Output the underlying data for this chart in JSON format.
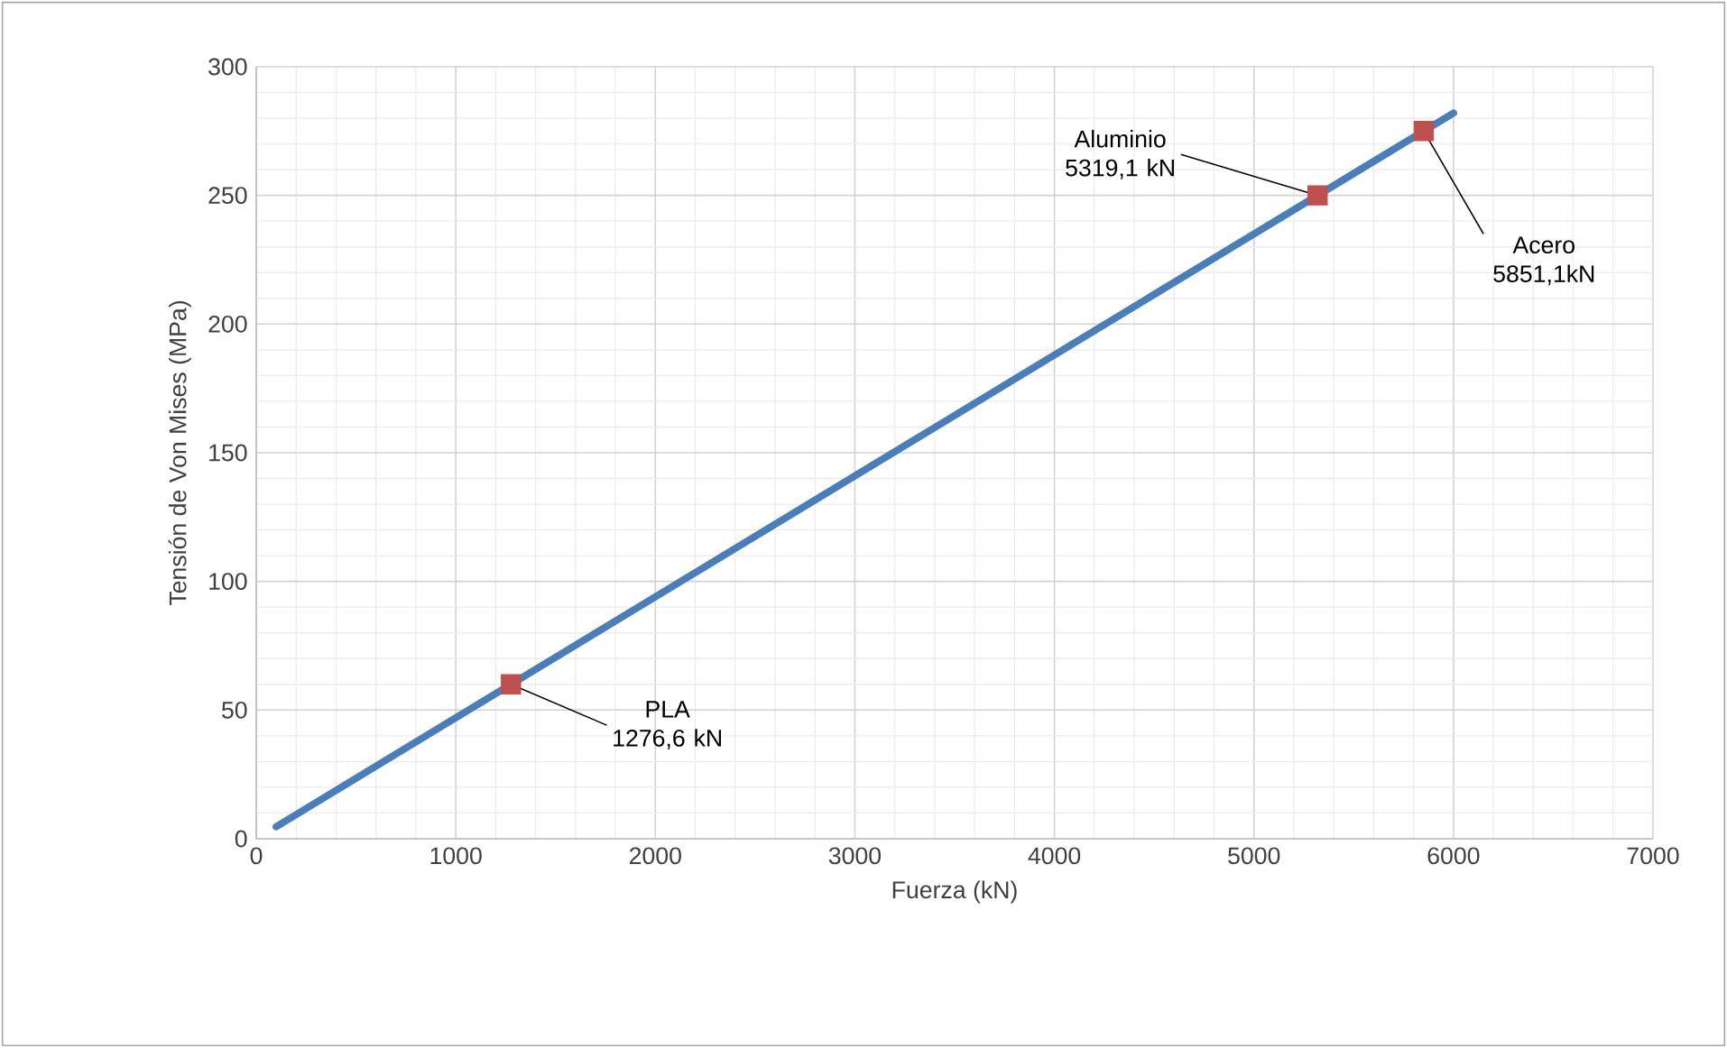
{
  "chart_data": {
    "type": "line",
    "xlabel": "Fuerza (kN)",
    "ylabel": "Tensión de Von Mises (MPa)",
    "series": [
      {
        "color": "#4a7ebb",
        "x": [
          100,
          6000
        ],
        "values": [
          4.7,
          282
        ],
        "marker": "none"
      },
      {
        "type": "scatter",
        "color": "#c0504d",
        "x": [
          1276.6,
          5319.1,
          5851.1
        ],
        "values": [
          60,
          250,
          275
        ],
        "marker": "square"
      }
    ],
    "xlim": [
      0,
      7000
    ],
    "xticks": [
      0,
      1000,
      2000,
      3000,
      4000,
      5000,
      6000,
      7000
    ],
    "ylim": [
      0,
      300
    ],
    "yticks": [
      0,
      50,
      100,
      150,
      200,
      250,
      300
    ],
    "grid": true,
    "annotations": [
      {
        "text": "PLA 1276,6 kN",
        "x": 1276.6,
        "y": 60
      },
      {
        "text": "Aluminio 5319,1 kN",
        "x": 5319.1,
        "y": 250
      },
      {
        "text": "Acero 5851,1kN",
        "x": 5851.1,
        "y": 275
      }
    ]
  }
}
